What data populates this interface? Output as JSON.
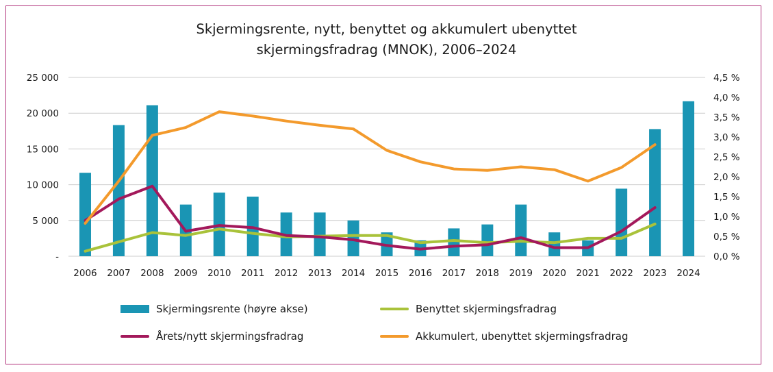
{
  "title_lines": [
    "Skjermingsrente, nytt, benyttet og akkumulert ubenyttet",
    "skjermingsfradrag (MNOK), 2006–2024"
  ],
  "colors": {
    "border": "#b0307a",
    "bar": "#1a95b4",
    "benyttet": "#a9c23a",
    "arets": "#a3195b",
    "akkumulert": "#f39a2c",
    "grid": "#cccccc"
  },
  "chart_data": {
    "type": "bar+line",
    "title": "Skjermingsrente, nytt, benyttet og akkumulert ubenyttet skjermingsfradrag (MNOK), 2006–2024",
    "categories": [
      "2006",
      "2007",
      "2008",
      "2009",
      "2010",
      "2011",
      "2012",
      "2013",
      "2014",
      "2015",
      "2016",
      "2017",
      "2018",
      "2019",
      "2020",
      "2021",
      "2022",
      "2023",
      "2024"
    ],
    "y_left": {
      "ylim": [
        0,
        25000
      ],
      "ticks": [
        0,
        5000,
        10000,
        15000,
        20000,
        25000
      ],
      "tick_labels": [
        "-",
        "5 000",
        "10 000",
        "15 000",
        "20 000",
        "25 000"
      ]
    },
    "y_right": {
      "ylim": [
        0,
        4.5
      ],
      "ticks": [
        0,
        0.5,
        1,
        1.5,
        2,
        2.5,
        3,
        3.5,
        4,
        4.5
      ],
      "tick_labels": [
        "0,0 %",
        "0,5 %",
        "1,0 %",
        "1,5 %",
        "2,0 %",
        "2,5 %",
        "3,0 %",
        "3,5 %",
        "4,0 %",
        "4,5 %"
      ]
    },
    "grid": true,
    "legend_position": "bottom",
    "series": [
      {
        "name": "Skjermingsrente (høyre akse)",
        "type": "bar",
        "axis": "right",
        "color": "#1a95b4",
        "values": [
          2.1,
          3.3,
          3.8,
          1.3,
          1.6,
          1.5,
          1.1,
          1.1,
          0.9,
          0.6,
          0.4,
          0.7,
          0.8,
          1.3,
          0.6,
          0.4,
          1.7,
          3.2,
          3.9
        ]
      },
      {
        "name": "Benyttet skjermingsfradrag",
        "type": "line",
        "axis": "left",
        "color": "#a9c23a",
        "values": [
          700,
          2000,
          3300,
          2900,
          3800,
          3200,
          2700,
          2800,
          2900,
          2900,
          1900,
          2200,
          1900,
          2100,
          1900,
          2500,
          2500,
          4500,
          null
        ]
      },
      {
        "name": "Årets/nytt skjermingsfradrag",
        "type": "line",
        "axis": "left",
        "color": "#a3195b",
        "values": [
          5000,
          8000,
          9800,
          3500,
          4300,
          4000,
          2900,
          2700,
          2300,
          1500,
          1000,
          1400,
          1600,
          2600,
          1200,
          1200,
          3500,
          6800,
          null
        ]
      },
      {
        "name": "Akkumulert, ubenyttet skjermingsfradrag",
        "type": "line",
        "axis": "left",
        "color": "#f39a2c",
        "values": [
          4600,
          10500,
          16900,
          18000,
          20200,
          19600,
          18900,
          18300,
          17800,
          14800,
          13200,
          12200,
          12000,
          12500,
          12100,
          10500,
          12400,
          15600,
          null
        ]
      }
    ]
  },
  "legend": [
    {
      "label": "Skjermingsrente (høyre akse)",
      "kind": "bar",
      "color": "#1a95b4"
    },
    {
      "label": "Benyttet skjermingsfradrag",
      "kind": "line",
      "color": "#a9c23a"
    },
    {
      "label": "Årets/nytt skjermingsfradrag",
      "kind": "line",
      "color": "#a3195b"
    },
    {
      "label": "Akkumulert, ubenyttet skjermingsfradrag",
      "kind": "line",
      "color": "#f39a2c"
    }
  ]
}
